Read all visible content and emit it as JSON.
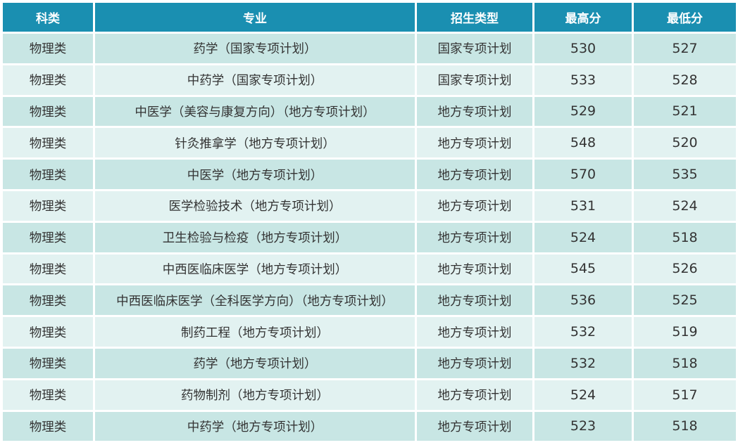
{
  "colors": {
    "header": "#1a8fb1",
    "row_odd": "#c8e6e4",
    "row_even": "#e2f2f1"
  },
  "headers": [
    "科类",
    "专业",
    "招生类型",
    "最高分",
    "最低分"
  ],
  "rows": [
    [
      "物理类",
      "药学（国家专项计划）",
      "国家专项计划",
      "530",
      "527"
    ],
    [
      "物理类",
      "中药学（国家专项计划）",
      "国家专项计划",
      "533",
      "528"
    ],
    [
      "物理类",
      "中医学（美容与康复方向）（地方专项计划）",
      "地方专项计划",
      "529",
      "521"
    ],
    [
      "物理类",
      "针灸推拿学（地方专项计划）",
      "地方专项计划",
      "548",
      "520"
    ],
    [
      "物理类",
      "中医学（地方专项计划）",
      "地方专项计划",
      "570",
      "535"
    ],
    [
      "物理类",
      "医学检验技术（地方专项计划）",
      "地方专项计划",
      "531",
      "524"
    ],
    [
      "物理类",
      "卫生检验与检疫（地方专项计划）",
      "地方专项计划",
      "524",
      "518"
    ],
    [
      "物理类",
      "中西医临床医学（地方专项计划）",
      "地方专项计划",
      "545",
      "526"
    ],
    [
      "物理类",
      "中西医临床医学（全科医学方向）（地方专项计划）",
      "地方专项计划",
      "536",
      "525"
    ],
    [
      "物理类",
      "制药工程（地方专项计划）",
      "地方专项计划",
      "532",
      "519"
    ],
    [
      "物理类",
      "药学（地方专项计划）",
      "地方专项计划",
      "532",
      "518"
    ],
    [
      "物理类",
      "药物制剂（地方专项计划）",
      "地方专项计划",
      "524",
      "517"
    ],
    [
      "物理类",
      "中药学（地方专项计划）",
      "地方专项计划",
      "523",
      "518"
    ]
  ]
}
